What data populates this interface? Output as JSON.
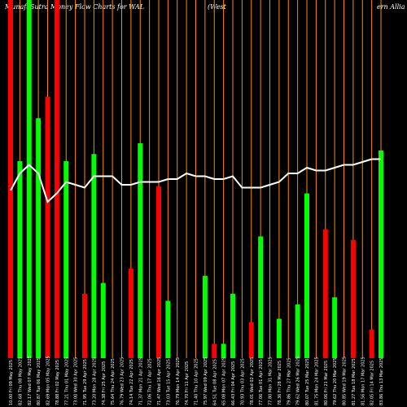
{
  "header": {
    "title_left": "MunafaSutra  Money Flow  Charts for WAL",
    "title_mid": "(West",
    "title_right": "ern  Allia"
  },
  "chart_data": {
    "type": "bar",
    "title": "MunafaSutra  Money Flow  Charts for WAL (Western Alliance",
    "colors": {
      "background": "#000000",
      "up": "#00ff00",
      "down": "#ff0000",
      "grid": "#ff8c00",
      "line": "#ffffff"
    },
    "grid": true,
    "ylim": [
      0,
      100
    ],
    "categories": [
      "10.00 Fri 09 May 2025",
      "82.68 Thu 08 May 2025",
      "82.17 Wed 07 May 2025",
      "80.87 Tue 06 May 2025",
      "82.69 Mon 05 May 2025",
      "78.88 Fri 02 May 2025",
      "77.21 Thu 01 May 2025",
      "73.00 Wed 30 Apr 2025",
      "71.95 Tue 29 Apr 2025",
      "73.20 Mon 28 Apr 2025",
      "74.38 Fri 25 Apr 2025",
      "75.64 Thu 24 Apr 2025",
      "76.79 Wed 23 Apr 2025",
      "74.14 Tue 22 Apr 2025",
      "71.37 Mon 21 Apr 2025",
      "72.06 Thu 17 Apr 2025",
      "71.47 Wed 16 Apr 2025",
      "73.03 Tue 15 Apr 2025",
      "76.79 Mon 14 Apr 2025",
      "74.70 Fri 11 Apr 2025",
      "71.40 Thu 10 Apr 2025",
      "75.97 Wed 09 Apr 2025",
      "64.51 Tue 08 Apr 2025",
      "65.08 Mon 07 Apr 2025",
      "66.43 Fri 04 Apr 2025",
      "70.93 Thu 03 Apr 2025",
      "78.01 Wed 02 Apr 2025",
      "77.06 Tue 01 Apr 2025",
      "77.80 Mon 31 Mar 2025",
      "78.36 Fri 28 Mar 2025",
      "79.86 Thu 27 Mar 2025",
      "79.62 Wed 26 Mar 2025",
      "80.07 Tue 25 Mar 2025",
      "81.75 Mon 24 Mar 2025",
      "80.06 Fri 21 Mar 2025",
      "79.62 Thu 20 Mar 2025",
      "80.85 Wed 19 Mar 2025",
      "81.27 Tue 18 Mar 2025",
      "81.56 Mon 17 Mar 2025",
      "82.05 Fri 14 Mar 2025",
      "83.86 Thu 13 Mar 2025"
    ],
    "series": [
      {
        "role": "money-flow-bars",
        "values": [
          100,
          55,
          100,
          67,
          73,
          100,
          55,
          0,
          18,
          57,
          21,
          0,
          0,
          25,
          60,
          0,
          48,
          16,
          0,
          0,
          0,
          23,
          4,
          4,
          18,
          0,
          10,
          34,
          0,
          11,
          0,
          15,
          46,
          0,
          36,
          17,
          0,
          33,
          0,
          8,
          58
        ],
        "colors": [
          "red",
          "green",
          "green",
          "green",
          "red",
          "red",
          "green",
          "green",
          "red",
          "green",
          "green",
          "green",
          "red",
          "red",
          "green",
          "red",
          "red",
          "green",
          "green",
          "green",
          "green",
          "green",
          "red",
          "green",
          "green",
          "green",
          "red",
          "green",
          "green",
          "green",
          "red",
          "green",
          "green",
          "green",
          "red",
          "green",
          "green",
          "red",
          "green",
          "red",
          "green"
        ]
      },
      {
        "role": "money-flow-bars-upper",
        "values": [
          100,
          0,
          0,
          0,
          0,
          0,
          0,
          0,
          0,
          0,
          0,
          0,
          0,
          0,
          0,
          0,
          0,
          0,
          0,
          0,
          0,
          0,
          0,
          0,
          0,
          0,
          0,
          0,
          0,
          0,
          0,
          0,
          0,
          0,
          0,
          0,
          0,
          0,
          0,
          0,
          0
        ]
      },
      {
        "role": "price-line",
        "values": [
          46,
          52,
          55,
          52,
          42,
          45,
          49,
          48,
          47,
          51,
          51,
          51,
          48,
          48,
          49,
          49,
          49,
          50,
          50,
          52,
          51,
          51,
          50,
          50,
          51,
          47,
          47,
          47,
          48,
          49,
          52,
          52,
          54,
          53,
          53,
          54,
          55,
          55,
          56,
          57,
          57
        ]
      }
    ]
  }
}
